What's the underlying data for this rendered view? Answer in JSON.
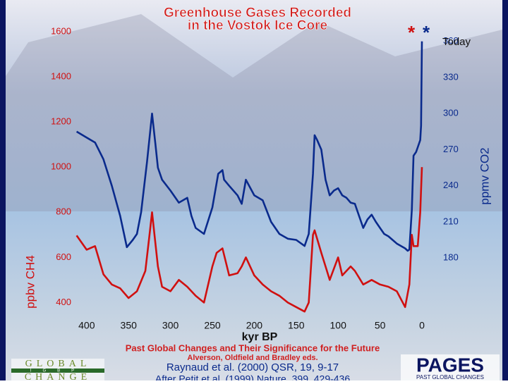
{
  "chart_data": {
    "type": "line",
    "title": [
      "Greenhouse Gases Recorded",
      "in the Vostok Ice Core"
    ],
    "xlabel": "kyr BP",
    "ylabel": "ppbv CH4",
    "y2label": "ppmv CO2",
    "annotations": [
      "Today",
      "*",
      "*"
    ],
    "xlim": [
      415,
      0
    ],
    "xticks": [
      400,
      350,
      300,
      250,
      200,
      150,
      100,
      50,
      0
    ],
    "ylim": [
      320,
      1600
    ],
    "yticks": [
      400,
      600,
      800,
      1000,
      1200,
      1400,
      1600
    ],
    "y2lim": [
      128,
      368
    ],
    "y2ticks": [
      180,
      210,
      240,
      270,
      300,
      330,
      360
    ],
    "series": [
      {
        "color": "#0a2a8c",
        "axis": "y2",
        "x": [
          412,
          400,
          390,
          380,
          370,
          360,
          352,
          345,
          340,
          335,
          328,
          322,
          318,
          315,
          310,
          300,
          290,
          280,
          275,
          270,
          260,
          250,
          243,
          238,
          236,
          230,
          220,
          215,
          210,
          200,
          190,
          180,
          170,
          160,
          150,
          140,
          135,
          130,
          128,
          125,
          120,
          115,
          110,
          105,
          100,
          95,
          90,
          85,
          80,
          75,
          70,
          65,
          60,
          55,
          50,
          45,
          40,
          35,
          30,
          25,
          20,
          17,
          15,
          12,
          10,
          7,
          5,
          2,
          1,
          0
        ],
        "values": [
          285,
          280,
          276,
          262,
          240,
          215,
          189,
          195,
          200,
          218,
          260,
          300,
          275,
          255,
          245,
          236,
          226,
          230,
          215,
          205,
          200,
          222,
          250,
          253,
          245,
          240,
          232,
          225,
          245,
          232,
          228,
          210,
          200,
          196,
          195,
          190,
          200,
          250,
          282,
          278,
          270,
          245,
          232,
          236,
          238,
          232,
          230,
          226,
          225,
          215,
          205,
          212,
          216,
          210,
          205,
          200,
          198,
          195,
          192,
          190,
          188,
          186,
          187,
          220,
          265,
          268,
          272,
          278,
          290,
          360
        ]
      },
      {
        "color": "#d01010",
        "axis": "y",
        "x": [
          412,
          400,
          390,
          380,
          370,
          360,
          350,
          340,
          330,
          325,
          322,
          315,
          310,
          300,
          290,
          280,
          270,
          260,
          250,
          245,
          238,
          230,
          220,
          215,
          210,
          200,
          190,
          180,
          170,
          160,
          150,
          140,
          135,
          130,
          128,
          120,
          115,
          110,
          100,
          95,
          85,
          80,
          70,
          60,
          50,
          40,
          30,
          20,
          15,
          12,
          10,
          5,
          2,
          0
        ],
        "values": [
          697,
          634,
          650,
          525,
          480,
          463,
          420,
          450,
          540,
          700,
          800,
          560,
          470,
          450,
          500,
          470,
          430,
          400,
          560,
          620,
          640,
          520,
          530,
          560,
          600,
          520,
          480,
          450,
          430,
          400,
          380,
          360,
          400,
          700,
          720,
          620,
          560,
          500,
          600,
          520,
          560,
          540,
          480,
          500,
          480,
          470,
          450,
          380,
          480,
          700,
          650,
          650,
          800,
          1000
        ]
      }
    ]
  },
  "footer": [
    "Past Global Changes and Their Significance for the Future",
    "Alverson, Oldfield and Bradley eds.",
    "Raynaud et al. (2000) QSR, 19, 9-17",
    "After Petit et al. (1999) Nature, 399, 429-436"
  ],
  "logos": [
    "GLOBAL",
    "IGBP",
    "CHANGE",
    "PAGES",
    "PAST GLOBAL CHANGES"
  ]
}
